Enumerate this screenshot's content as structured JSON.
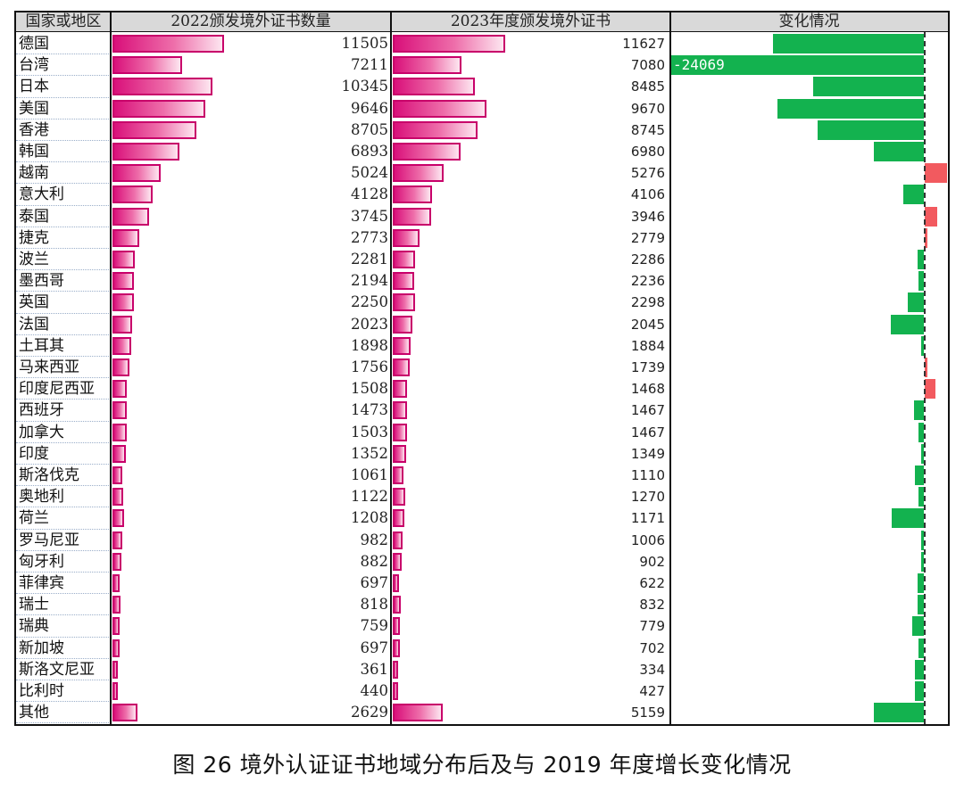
{
  "caption": "图 26 境外认证证书地域分布后及与 2019 年度增长变化情况",
  "chart_data": {
    "type": "table",
    "columns": [
      "国家或地区",
      "2022颁发境外证书数量",
      "2023年度颁发境外证书",
      "变化情况"
    ],
    "colors": {
      "bar_border": "#c8006a",
      "bar_fill": "#e3308a",
      "decrease": "#13b24f",
      "increase": "#f25a5f"
    },
    "rows": [
      {
        "name": "德国",
        "v2022": 11505,
        "v2023": 11627,
        "change": -3000
      },
      {
        "name": "台湾",
        "v2022": 7211,
        "v2023": 7080,
        "change": -24069,
        "change_label": "-24069"
      },
      {
        "name": "日本",
        "v2022": 10345,
        "v2023": 8485,
        "change": -2200
      },
      {
        "name": "美国",
        "v2022": 9646,
        "v2023": 9670,
        "change": -2900
      },
      {
        "name": "香港",
        "v2022": 8705,
        "v2023": 8745,
        "change": -2100
      },
      {
        "name": "韩国",
        "v2022": 6893,
        "v2023": 6980,
        "change": -1000
      },
      {
        "name": "越南",
        "v2022": 5024,
        "v2023": 5276,
        "change": 500
      },
      {
        "name": "意大利",
        "v2022": 4128,
        "v2023": 4106,
        "change": -400
      },
      {
        "name": "泰国",
        "v2022": 3745,
        "v2023": 3946,
        "change": 250
      },
      {
        "name": "捷克",
        "v2022": 2773,
        "v2023": 2779,
        "change": 60
      },
      {
        "name": "波兰",
        "v2022": 2281,
        "v2023": 2286,
        "change": -120
      },
      {
        "name": "墨西哥",
        "v2022": 2194,
        "v2023": 2236,
        "change": -100
      },
      {
        "name": "英国",
        "v2022": 2250,
        "v2023": 2298,
        "change": -320
      },
      {
        "name": "法国",
        "v2022": 2023,
        "v2023": 2045,
        "change": -650
      },
      {
        "name": "土耳其",
        "v2022": 1898,
        "v2023": 1884,
        "change": -50
      },
      {
        "name": "马来西亚",
        "v2022": 1756,
        "v2023": 1739,
        "change": 20
      },
      {
        "name": "印度尼西亚",
        "v2022": 1508,
        "v2023": 1468,
        "change": 220
      },
      {
        "name": "西班牙",
        "v2022": 1473,
        "v2023": 1467,
        "change": -200
      },
      {
        "name": "加拿大",
        "v2022": 1503,
        "v2023": 1467,
        "change": -100
      },
      {
        "name": "印度",
        "v2022": 1352,
        "v2023": 1349,
        "change": -10
      },
      {
        "name": "斯洛伐克",
        "v2022": 1061,
        "v2023": 1110,
        "change": -170
      },
      {
        "name": "奥地利",
        "v2022": 1122,
        "v2023": 1270,
        "change": -100
      },
      {
        "name": "荷兰",
        "v2022": 1208,
        "v2023": 1171,
        "change": -640
      },
      {
        "name": "罗马尼亚",
        "v2022": 982,
        "v2023": 1006,
        "change": -40
      },
      {
        "name": "匈牙利",
        "v2022": 882,
        "v2023": 902,
        "change": -50
      },
      {
        "name": "菲律宾",
        "v2022": 697,
        "v2023": 622,
        "change": -120
      },
      {
        "name": "瑞士",
        "v2022": 818,
        "v2023": 832,
        "change": -120
      },
      {
        "name": "瑞典",
        "v2022": 759,
        "v2023": 779,
        "change": -230
      },
      {
        "name": "新加坡",
        "v2022": 697,
        "v2023": 702,
        "change": -100
      },
      {
        "name": "斯洛文尼亚",
        "v2022": 361,
        "v2023": 334,
        "change": -170
      },
      {
        "name": "比利时",
        "v2022": 440,
        "v2023": 427,
        "change": -170
      },
      {
        "name": "其他",
        "v2022": 2629,
        "v2023": 5159,
        "change": -1000
      }
    ]
  }
}
